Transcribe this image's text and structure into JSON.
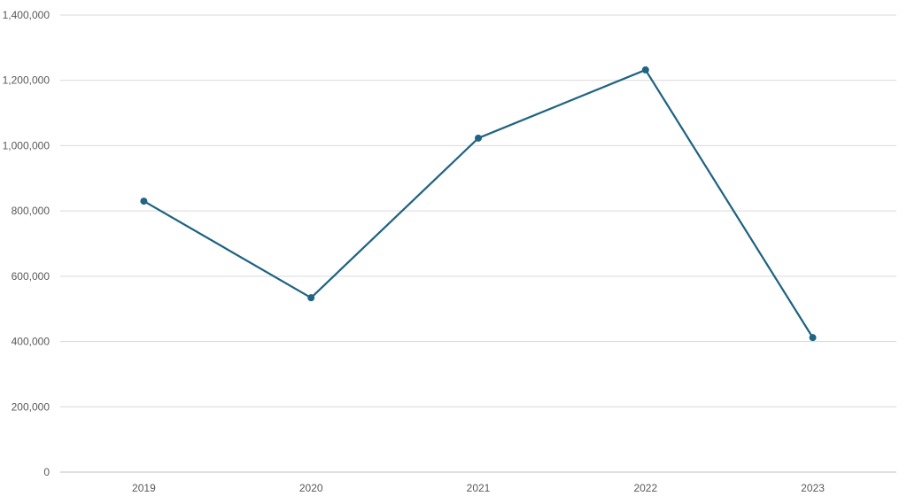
{
  "chart_data": {
    "type": "line",
    "title": "",
    "xlabel": "",
    "ylabel": "",
    "categories": [
      "2019",
      "2020",
      "2021",
      "2022",
      "2023"
    ],
    "series": [
      {
        "values": [
          830000,
          534000,
          1023000,
          1232000,
          412000
        ],
        "color": "#1f6482"
      }
    ],
    "ylim": [
      0,
      1400000
    ],
    "yticks": [
      0,
      200000,
      400000,
      600000,
      800000,
      1000000,
      1200000,
      1400000
    ],
    "ytick_labels": [
      "0",
      "200,000",
      "400,000",
      "600,000",
      "800,000",
      "1,000,000",
      "1,200,000",
      "1,400,000"
    ],
    "grid": true,
    "markers": true,
    "legend": "none"
  }
}
